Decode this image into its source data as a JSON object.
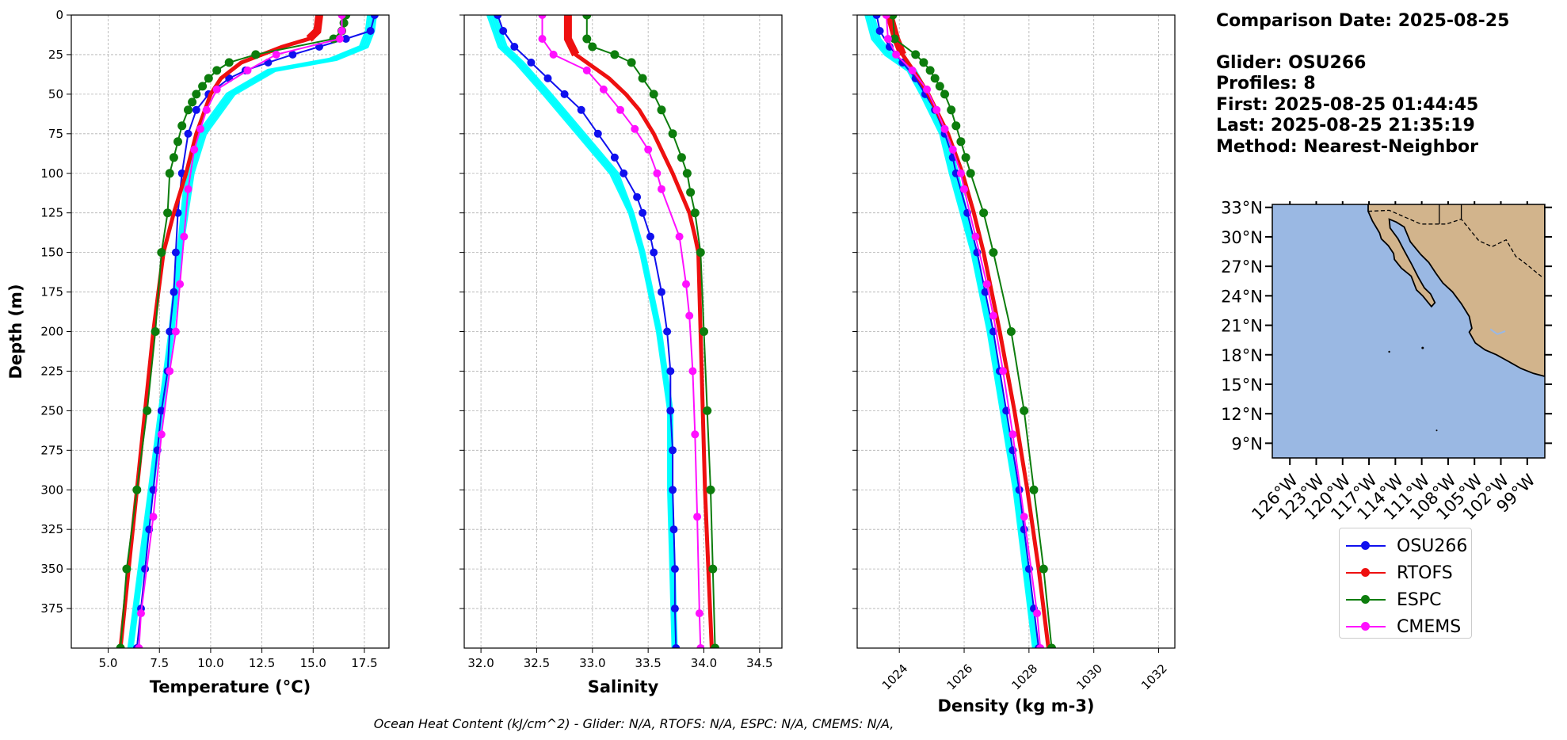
{
  "info": {
    "comparison_date": "Comparison Date: 2025-08-25",
    "glider": "Glider: OSU266",
    "profiles": "Profiles: 8",
    "first": "First: 2025-08-25 01:44:45",
    "last": "Last: 2025-08-25 21:35:19",
    "method": "Method: Nearest-Neighbor"
  },
  "footer": "Ocean Heat Content (kJ/cm^2) - Glider: N/A,  RTOFS: N/A,  ESPC: N/A,  CMEMS: N/A,",
  "colors": {
    "glider": "#1010ee",
    "rtofs": "#ee1010",
    "espc": "#0d7d0d",
    "cmems": "#ff10ff",
    "glider_profiles": "#00ffff",
    "ocean": "#9ab8e3",
    "land": "#d2b48c"
  },
  "legend": [
    {
      "name": "OSU266",
      "color": "#1010ee"
    },
    {
      "name": "RTOFS",
      "color": "#ee1010"
    },
    {
      "name": "ESPC",
      "color": "#0d7d0d"
    },
    {
      "name": "CMEMS",
      "color": "#ff10ff"
    }
  ],
  "chart_data": [
    {
      "type": "line",
      "title": "",
      "xlabel": "Temperature (°C)",
      "ylabel": "Depth (m)",
      "xlim": [
        3.2,
        18.7
      ],
      "ylim": [
        400,
        0
      ],
      "xticks": [
        "5.0",
        "7.5",
        "10.0",
        "12.5",
        "15.0",
        "17.5"
      ],
      "yticks": [
        "0",
        "25",
        "50",
        "75",
        "100",
        "125",
        "150",
        "175",
        "200",
        "225",
        "250",
        "275",
        "300",
        "325",
        "350",
        "375"
      ],
      "grid": true,
      "series": [
        {
          "name": "Glider profiles",
          "depth": [
            0,
            10,
            20,
            28,
            35,
            50,
            75,
            100,
            150,
            200,
            250,
            300,
            350,
            400
          ],
          "values": [
            17.9,
            17.8,
            17.5,
            16.0,
            13.0,
            11.0,
            9.6,
            9.0,
            8.5,
            8.1,
            7.6,
            7.1,
            6.6,
            6.1
          ]
        },
        {
          "name": "OSU266",
          "depth": [
            0,
            10,
            15,
            20,
            25,
            30,
            35,
            40,
            50,
            60,
            75,
            100,
            125,
            150,
            175,
            200,
            225,
            250,
            275,
            300,
            325,
            350,
            375,
            400
          ],
          "values": [
            18.0,
            17.8,
            16.6,
            15.3,
            14.0,
            12.8,
            11.7,
            10.9,
            9.9,
            9.3,
            8.9,
            8.6,
            8.4,
            8.3,
            8.2,
            8.0,
            7.9,
            7.6,
            7.4,
            7.2,
            7.0,
            6.8,
            6.6,
            6.4
          ]
        },
        {
          "name": "RTOFS",
          "depth": [
            0,
            10,
            15,
            20,
            25,
            30,
            40,
            50,
            75,
            100,
            125,
            150,
            200,
            250,
            300,
            350,
            400
          ],
          "values": [
            15.3,
            15.2,
            14.8,
            13.5,
            12.5,
            11.5,
            10.5,
            10.0,
            9.3,
            8.8,
            8.2,
            7.7,
            7.2,
            6.8,
            6.4,
            6.0,
            5.6
          ]
        },
        {
          "name": "ESPC",
          "depth": [
            0,
            5,
            10,
            15,
            25,
            30,
            35,
            40,
            45,
            50,
            55,
            60,
            70,
            80,
            90,
            100,
            125,
            150,
            200,
            250,
            300,
            350,
            400
          ],
          "values": [
            16.6,
            16.5,
            16.4,
            16.0,
            12.2,
            10.9,
            10.3,
            9.9,
            9.6,
            9.3,
            9.1,
            8.9,
            8.6,
            8.4,
            8.2,
            8.0,
            7.9,
            7.6,
            7.3,
            6.9,
            6.4,
            5.9,
            5.6
          ]
        },
        {
          "name": "CMEMS",
          "depth": [
            0,
            10,
            15,
            25,
            35,
            47,
            60,
            72,
            85,
            110,
            140,
            170,
            200,
            225,
            265,
            317,
            378,
            400
          ],
          "values": [
            16.4,
            16.4,
            16.3,
            13.2,
            11.8,
            10.3,
            9.8,
            9.5,
            9.2,
            8.9,
            8.7,
            8.5,
            8.3,
            8.0,
            7.6,
            7.2,
            6.6,
            6.5
          ]
        }
      ]
    },
    {
      "type": "line",
      "title": "",
      "xlabel": "Salinity",
      "ylabel": "",
      "xlim": [
        31.85,
        34.7
      ],
      "ylim": [
        400,
        0
      ],
      "xticks": [
        "32.0",
        "32.5",
        "33.0",
        "33.5",
        "34.0",
        "34.5"
      ],
      "yticks": [],
      "grid": true,
      "series": [
        {
          "name": "Glider profiles",
          "depth": [
            0,
            10,
            20,
            30,
            50,
            75,
            100,
            125,
            150,
            200,
            250,
            300,
            350,
            400
          ],
          "values": [
            32.1,
            32.15,
            32.2,
            32.35,
            32.6,
            32.9,
            33.2,
            33.35,
            33.45,
            33.6,
            33.7,
            33.7,
            33.72,
            33.74
          ]
        },
        {
          "name": "OSU266",
          "depth": [
            0,
            10,
            20,
            30,
            40,
            50,
            60,
            75,
            90,
            100,
            115,
            125,
            140,
            150,
            175,
            200,
            225,
            250,
            275,
            300,
            325,
            350,
            375,
            400
          ],
          "values": [
            32.15,
            32.2,
            32.3,
            32.45,
            32.6,
            32.75,
            32.9,
            33.05,
            33.2,
            33.28,
            33.4,
            33.45,
            33.52,
            33.55,
            33.62,
            33.67,
            33.7,
            33.7,
            33.72,
            33.72,
            33.73,
            33.74,
            33.74,
            33.75
          ]
        },
        {
          "name": "RTOFS",
          "depth": [
            0,
            15,
            25,
            40,
            50,
            60,
            75,
            100,
            125,
            140,
            150,
            175,
            200,
            250,
            300,
            350,
            400
          ],
          "values": [
            32.78,
            32.78,
            32.85,
            33.15,
            33.3,
            33.42,
            33.55,
            33.72,
            33.87,
            33.92,
            33.95,
            33.96,
            33.97,
            33.99,
            34.01,
            34.04,
            34.07
          ]
        },
        {
          "name": "ESPC",
          "depth": [
            0,
            15,
            20,
            25,
            30,
            40,
            50,
            60,
            75,
            90,
            100,
            112,
            125,
            150,
            200,
            250,
            300,
            350,
            400
          ],
          "values": [
            32.95,
            32.95,
            33.0,
            33.2,
            33.35,
            33.45,
            33.55,
            33.62,
            33.72,
            33.8,
            33.85,
            33.88,
            33.92,
            33.97,
            34.0,
            34.03,
            34.06,
            34.08,
            34.1
          ]
        },
        {
          "name": "CMEMS",
          "depth": [
            0,
            15,
            25,
            35,
            47,
            60,
            72,
            85,
            100,
            110,
            140,
            170,
            190,
            225,
            265,
            317,
            378,
            400
          ],
          "values": [
            32.55,
            32.55,
            32.65,
            32.95,
            33.1,
            33.25,
            33.38,
            33.5,
            33.58,
            33.62,
            33.78,
            33.84,
            33.87,
            33.9,
            33.92,
            33.94,
            33.96,
            33.97
          ]
        }
      ]
    },
    {
      "type": "line",
      "title": "",
      "xlabel": "Density (kg m-3)",
      "ylabel": "",
      "xlim": [
        1022.7,
        1032.5
      ],
      "ylim": [
        400,
        0
      ],
      "xticks": [
        "1024",
        "1026",
        "1028",
        "1030",
        "1032"
      ],
      "yticks": [],
      "grid": true,
      "series": [
        {
          "name": "Glider profiles",
          "depth": [
            0,
            15,
            25,
            35,
            50,
            75,
            100,
            150,
            200,
            250,
            300,
            350,
            400
          ],
          "values": [
            1023.1,
            1023.3,
            1023.7,
            1024.4,
            1024.8,
            1025.4,
            1025.7,
            1026.3,
            1026.8,
            1027.2,
            1027.6,
            1027.9,
            1028.2
          ]
        },
        {
          "name": "OSU266",
          "depth": [
            0,
            10,
            20,
            30,
            40,
            50,
            60,
            75,
            90,
            100,
            125,
            150,
            175,
            200,
            225,
            250,
            275,
            300,
            325,
            350,
            375,
            400
          ],
          "values": [
            1023.3,
            1023.4,
            1023.7,
            1024.1,
            1024.5,
            1024.8,
            1025.1,
            1025.4,
            1025.65,
            1025.75,
            1026.1,
            1026.4,
            1026.65,
            1026.9,
            1027.1,
            1027.3,
            1027.5,
            1027.7,
            1027.85,
            1028.0,
            1028.15,
            1028.3
          ]
        },
        {
          "name": "RTOFS",
          "depth": [
            0,
            15,
            25,
            40,
            50,
            75,
            100,
            125,
            150,
            200,
            250,
            300,
            350,
            400
          ],
          "values": [
            1023.7,
            1023.9,
            1024.1,
            1024.6,
            1024.9,
            1025.5,
            1025.95,
            1026.3,
            1026.6,
            1027.1,
            1027.55,
            1027.95,
            1028.3,
            1028.6
          ]
        },
        {
          "name": "ESPC",
          "depth": [
            0,
            15,
            25,
            30,
            35,
            40,
            45,
            50,
            60,
            70,
            80,
            90,
            100,
            125,
            150,
            200,
            250,
            300,
            350,
            400
          ],
          "values": [
            1023.8,
            1023.85,
            1024.5,
            1024.75,
            1024.95,
            1025.1,
            1025.25,
            1025.4,
            1025.6,
            1025.75,
            1025.9,
            1026.05,
            1026.2,
            1026.6,
            1026.9,
            1027.45,
            1027.85,
            1028.15,
            1028.45,
            1028.7
          ]
        },
        {
          "name": "CMEMS",
          "depth": [
            0,
            15,
            25,
            35,
            47,
            60,
            72,
            85,
            100,
            110,
            140,
            170,
            190,
            225,
            265,
            317,
            378,
            400
          ],
          "values": [
            1023.6,
            1023.65,
            1023.9,
            1024.4,
            1024.85,
            1025.15,
            1025.4,
            1025.65,
            1025.9,
            1026.0,
            1026.35,
            1026.7,
            1026.9,
            1027.2,
            1027.5,
            1027.85,
            1028.25,
            1028.35
          ]
        }
      ]
    },
    {
      "type": "map",
      "lon_ticks": [
        "126°W",
        "123°W",
        "120°W",
        "117°W",
        "114°W",
        "111°W",
        "108°W",
        "105°W",
        "102°W",
        "99°W"
      ],
      "lat_ticks": [
        "33°N",
        "30°N",
        "27°N",
        "24°N",
        "21°N",
        "18°N",
        "15°N",
        "12°N",
        "9°N"
      ]
    }
  ]
}
